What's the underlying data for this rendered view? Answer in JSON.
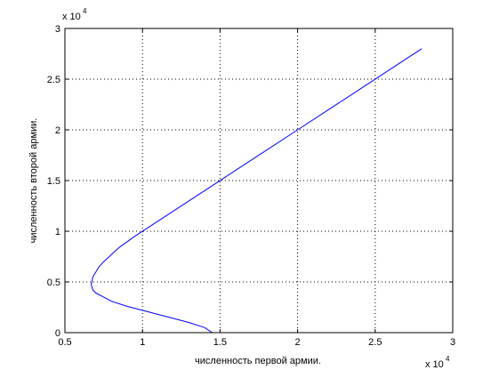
{
  "figure": {
    "background": "#ffffff"
  },
  "chart_data": {
    "type": "line",
    "title": "",
    "xlabel": "численность первой армии.",
    "ylabel": "численность второй армии.",
    "xlim": [
      5000,
      30000
    ],
    "ylim": [
      0,
      30000
    ],
    "x_multiplier_label": "x 10",
    "x_multiplier_exponent": "4",
    "y_multiplier_label": "x 10",
    "y_multiplier_exponent": "4",
    "xticks": [
      5000,
      10000,
      15000,
      20000,
      25000,
      30000
    ],
    "xtick_labels": [
      "0.5",
      "1",
      "1.5",
      "2",
      "2.5",
      "3"
    ],
    "yticks": [
      0,
      5000,
      10000,
      15000,
      20000,
      25000,
      30000
    ],
    "ytick_labels": [
      "0",
      "0.5",
      "1",
      "1.5",
      "2",
      "2.5",
      "3"
    ],
    "grid": true,
    "line_color": "#0000ff",
    "series": [
      {
        "x": [
          28000,
          26000,
          24000,
          22000,
          20000,
          18000,
          16000,
          14000,
          12000,
          10500,
          9500,
          8500,
          8000,
          7500,
          7200,
          7000,
          6800,
          6700,
          6800,
          7000,
          7500,
          8000,
          9000,
          10000,
          11000,
          12000,
          13000,
          14000,
          14500
        ],
        "y": [
          28000,
          26000,
          24000,
          22000,
          20000,
          18000,
          16000,
          14000,
          12000,
          10500,
          9500,
          8400,
          7700,
          7000,
          6500,
          6000,
          5500,
          4700,
          4200,
          3900,
          3500,
          3100,
          2600,
          2200,
          1800,
          1400,
          1000,
          500,
          0
        ]
      }
    ]
  }
}
